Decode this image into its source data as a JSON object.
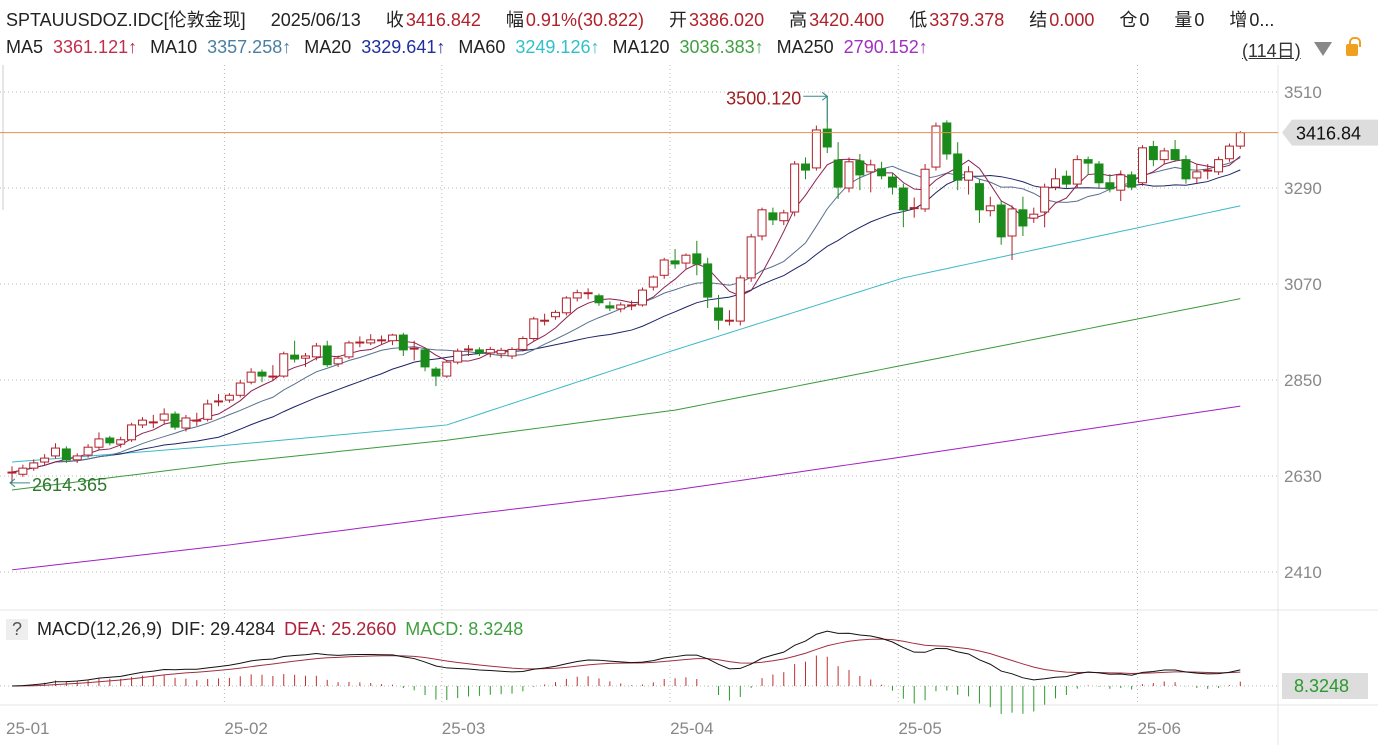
{
  "header": {
    "symbol": "SPTAUUSDOZ.IDC[伦敦金现]",
    "date": "2025/06/13",
    "close_label": "收",
    "close": "3416.842",
    "change_label": "幅",
    "change": "0.91%(30.822)",
    "open_label": "开",
    "open": "3386.020",
    "high_label": "高",
    "high": "3420.400",
    "low_label": "低",
    "low": "3379.378",
    "settle_label": "结",
    "settle": "0.000",
    "position_label": "仓",
    "position": "0",
    "volume_label": "量",
    "volume": "0",
    "increase_label": "增",
    "increase": "0..."
  },
  "ma_legend": [
    {
      "name": "MA5",
      "value": "3361.121↑",
      "color": "#c0304a"
    },
    {
      "name": "MA10",
      "value": "3357.258↑",
      "color": "#4a7fa0"
    },
    {
      "name": "MA20",
      "value": "3329.641↑",
      "color": "#2030a0"
    },
    {
      "name": "MA60",
      "value": "3249.126↑",
      "color": "#30c0c8"
    },
    {
      "name": "MA120",
      "value": "3036.383↑",
      "color": "#40a040"
    },
    {
      "name": "MA250",
      "value": "2790.152↑",
      "color": "#a030c0"
    }
  ],
  "period_label": "(114日)",
  "macd": {
    "help": "?",
    "title": "MACD(12,26,9)",
    "dif_label": "DIF: 29.4284",
    "dea_label": "DEA: 25.2660",
    "macd_label": "MACD: 8.3248",
    "value_tag": "8.3248"
  },
  "chart_data": {
    "type": "candlestick",
    "ylim": [
      2380,
      3560
    ],
    "yticks": [
      "3510",
      "3290",
      "3070",
      "2850",
      "2630",
      "2410"
    ],
    "xticks": [
      {
        "label": "25-01",
        "index": 0
      },
      {
        "label": "25-02",
        "index": 20
      },
      {
        "label": "25-03",
        "index": 40
      },
      {
        "label": "25-04",
        "index": 61
      },
      {
        "label": "25-05",
        "index": 82
      },
      {
        "label": "25-06",
        "index": 104
      }
    ],
    "last_price_tag": "3416.84",
    "last_price": 3416.842,
    "max_annotation": {
      "label": "3500.120",
      "index": 75,
      "value": 3500.12
    },
    "min_annotation": {
      "label": "2614.365",
      "index": 0,
      "value": 2614.365
    },
    "grid": true,
    "colors": {
      "up": "#b0202a",
      "down": "#1a8a1a",
      "ma5": "#8b2050",
      "ma10": "#5a7090",
      "ma20": "#1c2466",
      "ma60": "#3cb8c8",
      "ma120": "#3a9a3a",
      "ma250": "#a020c0",
      "last_line": "#e09050"
    },
    "candles_ohlc": [
      [
        2637,
        2652,
        2614.365,
        2639
      ],
      [
        2634,
        2656,
        2628,
        2648
      ],
      [
        2648,
        2668,
        2642,
        2660
      ],
      [
        2662,
        2680,
        2655,
        2671
      ],
      [
        2676,
        2705,
        2670,
        2694
      ],
      [
        2692,
        2698,
        2660,
        2667
      ],
      [
        2667,
        2682,
        2660,
        2676
      ],
      [
        2678,
        2703,
        2672,
        2696
      ],
      [
        2696,
        2730,
        2690,
        2715
      ],
      [
        2717,
        2722,
        2700,
        2706
      ],
      [
        2703,
        2720,
        2695,
        2713
      ],
      [
        2713,
        2752,
        2708,
        2747
      ],
      [
        2747,
        2765,
        2740,
        2758
      ],
      [
        2752,
        2770,
        2740,
        2754
      ],
      [
        2758,
        2785,
        2750,
        2772
      ],
      [
        2772,
        2778,
        2736,
        2742
      ],
      [
        2740,
        2770,
        2732,
        2763
      ],
      [
        2756,
        2775,
        2745,
        2758
      ],
      [
        2760,
        2805,
        2755,
        2795
      ],
      [
        2800,
        2818,
        2790,
        2802
      ],
      [
        2804,
        2820,
        2798,
        2815
      ],
      [
        2815,
        2850,
        2810,
        2843
      ],
      [
        2845,
        2877,
        2840,
        2868
      ],
      [
        2868,
        2874,
        2845,
        2859
      ],
      [
        2858,
        2884,
        2850,
        2859
      ],
      [
        2859,
        2915,
        2855,
        2910
      ],
      [
        2907,
        2940,
        2890,
        2898
      ],
      [
        2900,
        2912,
        2880,
        2905
      ],
      [
        2903,
        2935,
        2895,
        2928
      ],
      [
        2928,
        2940,
        2880,
        2885
      ],
      [
        2887,
        2906,
        2880,
        2900
      ],
      [
        2903,
        2940,
        2898,
        2935
      ],
      [
        2936,
        2950,
        2925,
        2937
      ],
      [
        2935,
        2955,
        2930,
        2942
      ],
      [
        2941,
        2952,
        2932,
        2942
      ],
      [
        2940,
        2956,
        2930,
        2953
      ],
      [
        2953,
        2958,
        2905,
        2919
      ],
      [
        2922,
        2940,
        2895,
        2923
      ],
      [
        2919,
        2925,
        2870,
        2880
      ],
      [
        2875,
        2880,
        2836,
        2859
      ],
      [
        2859,
        2896,
        2855,
        2891
      ],
      [
        2891,
        2922,
        2886,
        2916
      ],
      [
        2920,
        2930,
        2905,
        2921
      ],
      [
        2919,
        2925,
        2905,
        2912
      ],
      [
        2912,
        2926,
        2902,
        2920
      ],
      [
        2910,
        2924,
        2900,
        2918
      ],
      [
        2905,
        2925,
        2898,
        2920
      ],
      [
        2920,
        2950,
        2915,
        2945
      ],
      [
        2945,
        2995,
        2940,
        2990
      ],
      [
        2986,
        3002,
        2975,
        2987
      ],
      [
        2995,
        3010,
        2988,
        3005
      ],
      [
        3004,
        3042,
        2998,
        3038
      ],
      [
        3038,
        3057,
        3030,
        3050
      ],
      [
        3049,
        3060,
        3035,
        3050
      ],
      [
        3043,
        3048,
        3020,
        3027
      ],
      [
        3020,
        3030,
        3008,
        3015
      ],
      [
        3013,
        3028,
        3005,
        3022
      ],
      [
        3021,
        3032,
        3010,
        3022
      ],
      [
        3022,
        3062,
        3018,
        3056
      ],
      [
        3063,
        3090,
        3055,
        3086
      ],
      [
        3090,
        3130,
        3082,
        3125
      ],
      [
        3123,
        3150,
        3105,
        3116
      ],
      [
        3118,
        3140,
        3105,
        3136
      ],
      [
        3139,
        3169,
        3090,
        3116
      ],
      [
        3116,
        3130,
        3015,
        3040
      ],
      [
        3015,
        3045,
        2965,
        2987
      ],
      [
        2986,
        3010,
        2975,
        2987
      ],
      [
        2985,
        3090,
        2975,
        3084
      ],
      [
        3084,
        3185,
        3075,
        3178
      ],
      [
        3180,
        3245,
        3170,
        3240
      ],
      [
        3233,
        3245,
        3205,
        3217
      ],
      [
        3215,
        3240,
        3205,
        3233
      ],
      [
        3235,
        3352,
        3225,
        3345
      ],
      [
        3345,
        3360,
        3310,
        3331
      ],
      [
        3336,
        3433,
        3330,
        3423
      ],
      [
        3425,
        3500.12,
        3370,
        3384
      ],
      [
        3354,
        3395,
        3265,
        3292
      ],
      [
        3290,
        3360,
        3280,
        3350
      ],
      [
        3352,
        3368,
        3285,
        3320
      ],
      [
        3327,
        3355,
        3280,
        3343
      ],
      [
        3334,
        3350,
        3310,
        3318
      ],
      [
        3315,
        3325,
        3275,
        3292
      ],
      [
        3290,
        3300,
        3200,
        3240
      ],
      [
        3243,
        3268,
        3222,
        3245
      ],
      [
        3242,
        3345,
        3235,
        3333
      ],
      [
        3338,
        3440,
        3330,
        3432
      ],
      [
        3439,
        3445,
        3355,
        3368
      ],
      [
        3368,
        3395,
        3285,
        3308
      ],
      [
        3308,
        3340,
        3275,
        3327
      ],
      [
        3300,
        3310,
        3210,
        3240
      ],
      [
        3238,
        3270,
        3225,
        3249
      ],
      [
        3251,
        3262,
        3160,
        3178
      ],
      [
        3180,
        3250,
        3125,
        3242
      ],
      [
        3240,
        3270,
        3180,
        3203
      ],
      [
        3221,
        3245,
        3210,
        3230
      ],
      [
        3235,
        3300,
        3200,
        3292
      ],
      [
        3292,
        3335,
        3285,
        3311
      ],
      [
        3317,
        3330,
        3290,
        3299
      ],
      [
        3299,
        3365,
        3290,
        3355
      ],
      [
        3355,
        3362,
        3320,
        3347
      ],
      [
        3345,
        3352,
        3290,
        3302
      ],
      [
        3302,
        3322,
        3280,
        3288
      ],
      [
        3285,
        3330,
        3260,
        3320
      ],
      [
        3320,
        3328,
        3285,
        3292
      ],
      [
        3302,
        3388,
        3295,
        3382
      ],
      [
        3385,
        3398,
        3340,
        3355
      ],
      [
        3355,
        3382,
        3345,
        3375
      ],
      [
        3378,
        3400,
        3350,
        3355
      ],
      [
        3355,
        3365,
        3300,
        3311
      ],
      [
        3313,
        3345,
        3300,
        3327
      ],
      [
        3330,
        3345,
        3310,
        3331
      ],
      [
        3327,
        3362,
        3320,
        3355
      ],
      [
        3357,
        3392,
        3350,
        3386
      ],
      [
        3386.02,
        3420.4,
        3379.378,
        3416.842
      ]
    ],
    "long_ma_samples": {
      "index": [
        0,
        20,
        40,
        61,
        82,
        113
      ],
      "ma60": [
        2662,
        2701,
        2747,
        2919,
        3084,
        3249.126
      ],
      "ma120": [
        2598,
        2660,
        2712,
        2781,
        2884,
        3036.383
      ],
      "ma250": [
        2415,
        2472,
        2536,
        2598,
        2674,
        2790.152
      ]
    }
  }
}
